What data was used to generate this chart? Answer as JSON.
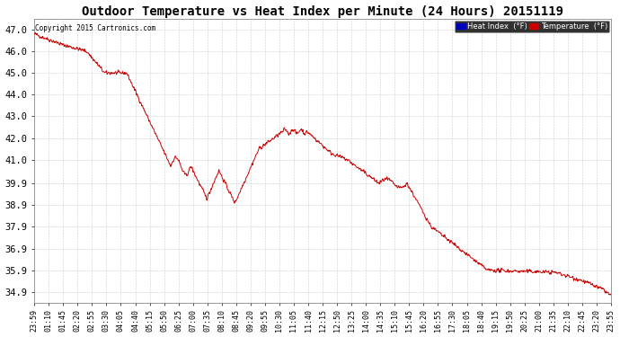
{
  "title": "Outdoor Temperature vs Heat Index per Minute (24 Hours) 20151119",
  "copyright": "Copyright 2015 Cartronics.com",
  "background_color": "#ffffff",
  "plot_bg_color": "#ffffff",
  "grid_color": "#cccccc",
  "line_color": "#cc0000",
  "ylim": [
    34.4,
    47.5
  ],
  "yticks": [
    34.9,
    35.9,
    36.9,
    37.9,
    38.9,
    39.9,
    41.0,
    42.0,
    43.0,
    44.0,
    45.0,
    46.0,
    47.0
  ],
  "xlabel_fontsize": 6,
  "ylabel_fontsize": 7.5,
  "title_fontsize": 10,
  "legend_heat_index_color": "#0000bb",
  "legend_temp_color": "#cc0000",
  "xtick_labels": [
    "23:59",
    "01:10",
    "01:45",
    "02:20",
    "02:55",
    "03:30",
    "04:05",
    "04:40",
    "05:15",
    "05:50",
    "06:25",
    "07:00",
    "07:35",
    "08:10",
    "08:45",
    "09:20",
    "09:55",
    "10:30",
    "11:05",
    "11:40",
    "12:15",
    "12:50",
    "13:25",
    "14:00",
    "14:35",
    "15:10",
    "15:45",
    "16:20",
    "16:55",
    "17:30",
    "18:05",
    "18:40",
    "19:15",
    "19:50",
    "20:25",
    "21:00",
    "21:35",
    "22:10",
    "22:45",
    "23:20",
    "23:55"
  ],
  "data_seed": 42,
  "figsize": [
    6.9,
    3.75
  ],
  "dpi": 100
}
